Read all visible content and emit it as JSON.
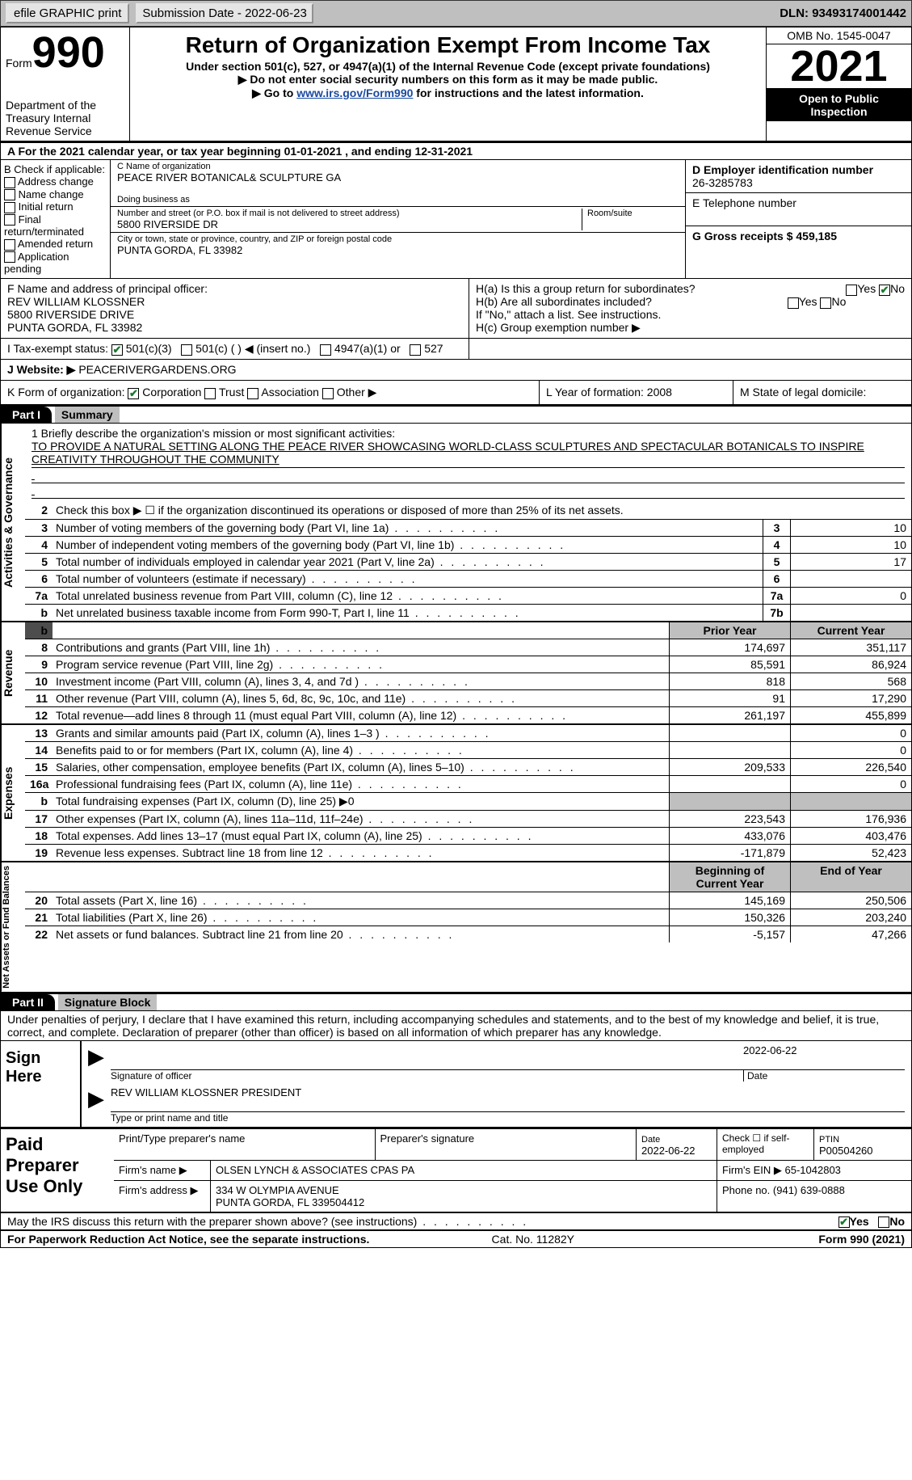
{
  "topbar": {
    "efile_label": "efile GRAPHIC print",
    "sub_date_label": "Submission Date - 2022-06-23",
    "dln_label": "DLN: 93493174001442"
  },
  "header": {
    "form_word": "Form",
    "form_num": "990",
    "dept": "Department of the Treasury Internal Revenue Service",
    "title": "Return of Organization Exempt From Income Tax",
    "sub1": "Under section 501(c), 527, or 4947(a)(1) of the Internal Revenue Code (except private foundations)",
    "sub2": "▶ Do not enter social security numbers on this form as it may be made public.",
    "sub3_pre": "▶ Go to ",
    "sub3_link": "www.irs.gov/Form990",
    "sub3_post": " for instructions and the latest information.",
    "omb": "OMB No. 1545-0047",
    "year": "2021",
    "open": "Open to Public Inspection"
  },
  "line_a": "A For the 2021 calendar year, or tax year beginning 01-01-2021   , and ending 12-31-2021",
  "b": {
    "label": "B Check if applicable:",
    "opt1": "Address change",
    "opt2": "Name change",
    "opt3": "Initial return",
    "opt4": "Final return/terminated",
    "opt5": "Amended return",
    "opt6": "Application pending"
  },
  "c": {
    "name_label": "C Name of organization",
    "name": "PEACE RIVER BOTANICAL& SCULPTURE GA",
    "dba_label": "Doing business as",
    "addr_label": "Number and street (or P.O. box if mail is not delivered to street address)",
    "room_label": "Room/suite",
    "addr": "5800 RIVERSIDE DR",
    "city_label": "City or town, state or province, country, and ZIP or foreign postal code",
    "city": "PUNTA GORDA, FL  33982"
  },
  "d": {
    "label": "D Employer identification number",
    "val": "26-3285783"
  },
  "e": {
    "label": "E Telephone number",
    "val": ""
  },
  "g": {
    "label": "G Gross receipts $ 459,185"
  },
  "f": {
    "label": "F  Name and address of principal officer:",
    "name": "REV WILLIAM KLOSSNER",
    "l2": "5800 RIVERSIDE DRIVE",
    "l3": "PUNTA GORDA, FL  33982"
  },
  "h": {
    "a": "H(a)  Is this a group return for subordinates?",
    "b": "H(b)  Are all subordinates included?",
    "note": "If \"No,\" attach a list. See instructions.",
    "c": "H(c)  Group exemption number ▶",
    "yes": "Yes",
    "no": "No"
  },
  "i": {
    "label": "I   Tax-exempt status:",
    "o1": "501(c)(3)",
    "o2": "501(c) (  ) ◀ (insert no.)",
    "o3": "4947(a)(1) or",
    "o4": "527"
  },
  "j": {
    "label": "J   Website: ▶",
    "val": "PEACERIVERGARDENS.ORG"
  },
  "k": {
    "label": "K Form of organization:",
    "o1": "Corporation",
    "o2": "Trust",
    "o3": "Association",
    "o4": "Other ▶",
    "l_label": "L Year of formation: 2008",
    "m_label": "M State of legal domicile:"
  },
  "parts": {
    "p1": "Part I",
    "p1_title": "Summary",
    "p2": "Part II",
    "p2_title": "Signature Block"
  },
  "summary": {
    "q1": "1  Briefly describe the organization's mission or most significant activities:",
    "mission": "TO PROVIDE A NATURAL SETTING ALONG THE PEACE RIVER SHOWCASING WORLD-CLASS SCULPTURES AND SPECTACULAR BOTANICALS TO INSPIRE CREATIVITY THROUGHOUT THE COMMUNITY",
    "q2": "Check this box ▶ ☐ if the organization discontinued its operations or disposed of more than 25% of its net assets.",
    "rows_gov": [
      {
        "n": "3",
        "d": "Number of voting members of the governing body (Part VI, line 1a)",
        "bx": "3",
        "v": "10"
      },
      {
        "n": "4",
        "d": "Number of independent voting members of the governing body (Part VI, line 1b)",
        "bx": "4",
        "v": "10"
      },
      {
        "n": "5",
        "d": "Total number of individuals employed in calendar year 2021 (Part V, line 2a)",
        "bx": "5",
        "v": "17"
      },
      {
        "n": "6",
        "d": "Total number of volunteers (estimate if necessary)",
        "bx": "6",
        "v": ""
      },
      {
        "n": "7a",
        "d": "Total unrelated business revenue from Part VIII, column (C), line 12",
        "bx": "7a",
        "v": "0"
      },
      {
        "n": "b",
        "d": "Net unrelated business taxable income from Form 990-T, Part I, line 11",
        "bx": "7b",
        "v": ""
      }
    ],
    "col_prior": "Prior Year",
    "col_curr": "Current Year",
    "rev": [
      {
        "n": "8",
        "d": "Contributions and grants (Part VIII, line 1h)",
        "p": "174,697",
        "c": "351,117"
      },
      {
        "n": "9",
        "d": "Program service revenue (Part VIII, line 2g)",
        "p": "85,591",
        "c": "86,924"
      },
      {
        "n": "10",
        "d": "Investment income (Part VIII, column (A), lines 3, 4, and 7d )",
        "p": "818",
        "c": "568"
      },
      {
        "n": "11",
        "d": "Other revenue (Part VIII, column (A), lines 5, 6d, 8c, 9c, 10c, and 11e)",
        "p": "91",
        "c": "17,290"
      },
      {
        "n": "12",
        "d": "Total revenue—add lines 8 through 11 (must equal Part VIII, column (A), line 12)",
        "p": "261,197",
        "c": "455,899"
      }
    ],
    "exp": [
      {
        "n": "13",
        "d": "Grants and similar amounts paid (Part IX, column (A), lines 1–3 )",
        "p": "",
        "c": "0"
      },
      {
        "n": "14",
        "d": "Benefits paid to or for members (Part IX, column (A), line 4)",
        "p": "",
        "c": "0"
      },
      {
        "n": "15",
        "d": "Salaries, other compensation, employee benefits (Part IX, column (A), lines 5–10)",
        "p": "209,533",
        "c": "226,540"
      },
      {
        "n": "16a",
        "d": "Professional fundraising fees (Part IX, column (A), line 11e)",
        "p": "",
        "c": "0"
      },
      {
        "n": "b",
        "d": "Total fundraising expenses (Part IX, column (D), line 25) ▶0",
        "shade": true
      },
      {
        "n": "17",
        "d": "Other expenses (Part IX, column (A), lines 11a–11d, 11f–24e)",
        "p": "223,543",
        "c": "176,936"
      },
      {
        "n": "18",
        "d": "Total expenses. Add lines 13–17 (must equal Part IX, column (A), line 25)",
        "p": "433,076",
        "c": "403,476"
      },
      {
        "n": "19",
        "d": "Revenue less expenses. Subtract line 18 from line 12",
        "p": "-171,879",
        "c": "52,423"
      }
    ],
    "col_begin": "Beginning of Current Year",
    "col_end": "End of Year",
    "net": [
      {
        "n": "20",
        "d": "Total assets (Part X, line 16)",
        "p": "145,169",
        "c": "250,506"
      },
      {
        "n": "21",
        "d": "Total liabilities (Part X, line 26)",
        "p": "150,326",
        "c": "203,240"
      },
      {
        "n": "22",
        "d": "Net assets or fund balances. Subtract line 21 from line 20",
        "p": "-5,157",
        "c": "47,266"
      }
    ],
    "side_gov": "Activities & Governance",
    "side_rev": "Revenue",
    "side_exp": "Expenses",
    "side_net": "Net Assets or Fund Balances"
  },
  "sig": {
    "decl": "Under penalties of perjury, I declare that I have examined this return, including accompanying schedules and statements, and to the best of my knowledge and belief, it is true, correct, and complete. Declaration of preparer (other than officer) is based on all information of which preparer has any knowledge.",
    "sign_here": "Sign Here",
    "sig_officer": "Signature of officer",
    "sig_date": "2022-06-22",
    "date_lbl": "Date",
    "name": "REV WILLIAM KLOSSNER  PRESIDENT",
    "name_lbl": "Type or print name and title"
  },
  "prep": {
    "title": "Paid Preparer Use Only",
    "h1": "Print/Type preparer's name",
    "h2": "Preparer's signature",
    "h3": "Date",
    "h3v": "2022-06-22",
    "h4": "Check ☐ if self-employed",
    "h5": "PTIN",
    "h5v": "P00504260",
    "firm_lbl": "Firm's name    ▶",
    "firm": "OLSEN LYNCH & ASSOCIATES CPAS PA",
    "ein_lbl": "Firm's EIN ▶",
    "ein": "65-1042803",
    "addr_lbl": "Firm's address ▶",
    "addr": "334 W OLYMPIA AVENUE",
    "addr2": "PUNTA GORDA, FL  339504412",
    "phone_lbl": "Phone no.",
    "phone": "(941) 639-0888"
  },
  "footer": {
    "q": "May the IRS discuss this return with the preparer shown above? (see instructions)",
    "yes": "Yes",
    "no": "No",
    "pra": "For Paperwork Reduction Act Notice, see the separate instructions.",
    "cat": "Cat. No. 11282Y",
    "form": "Form 990 (2021)"
  },
  "colors": {
    "topbar_bg": "#bfbfbf",
    "link": "#1a4aa0",
    "check": "#1a7a2e"
  }
}
